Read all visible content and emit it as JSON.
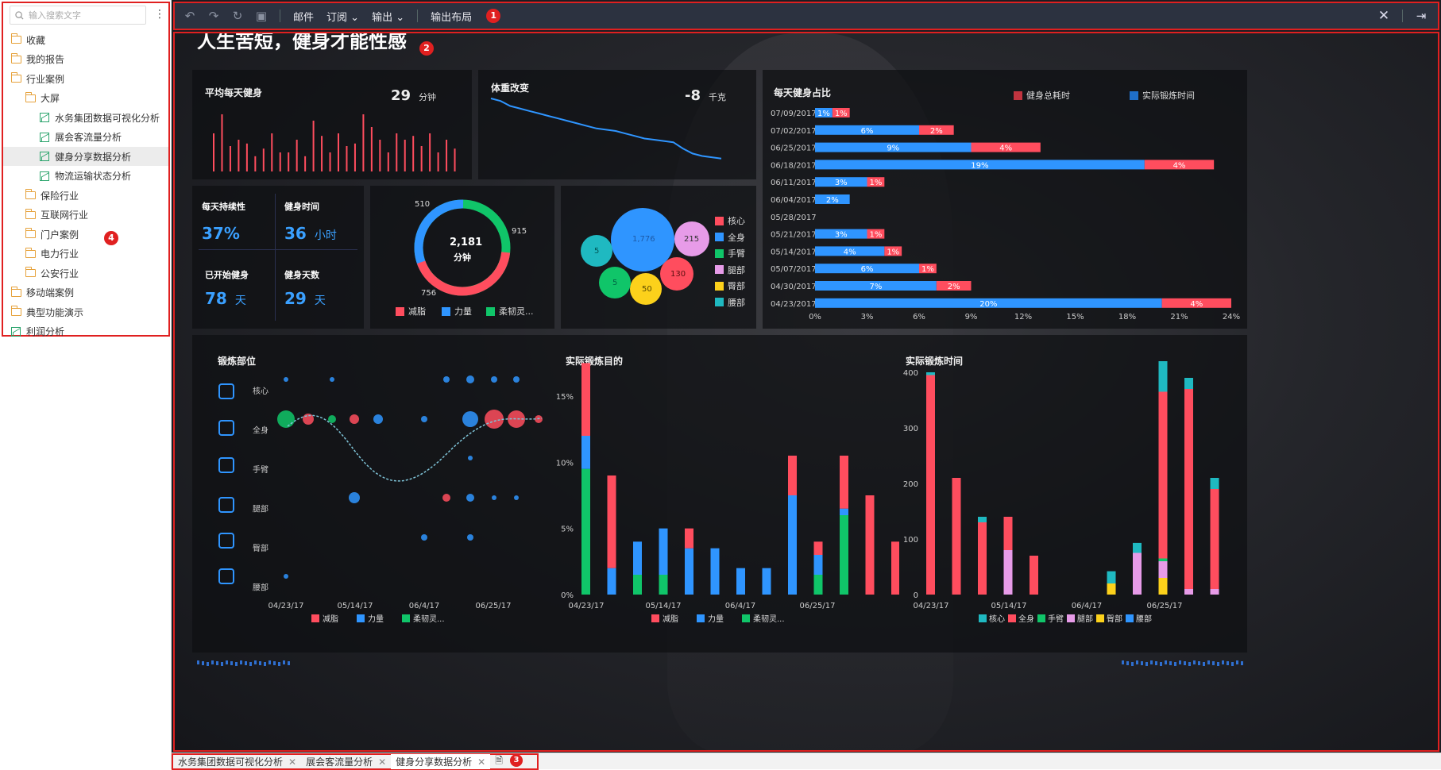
{
  "sidebar": {
    "search_placeholder": "输入搜索文字",
    "items": [
      {
        "label": "收藏",
        "type": "folder",
        "level": 0
      },
      {
        "label": "我的报告",
        "type": "folder",
        "level": 0
      },
      {
        "label": "行业案例",
        "type": "folder",
        "level": 0
      },
      {
        "label": "大屏",
        "type": "folder",
        "level": 1
      },
      {
        "label": "水务集团数据可视化分析",
        "type": "report",
        "level": 2
      },
      {
        "label": "展会客流量分析",
        "type": "report",
        "level": 2
      },
      {
        "label": "健身分享数据分析",
        "type": "report",
        "level": 2,
        "selected": true
      },
      {
        "label": "物流运输状态分析",
        "type": "report",
        "level": 2
      },
      {
        "label": "保险行业",
        "type": "folder",
        "level": 1
      },
      {
        "label": "互联网行业",
        "type": "folder",
        "level": 1
      },
      {
        "label": "门户案例",
        "type": "folder",
        "level": 1
      },
      {
        "label": "电力行业",
        "type": "folder",
        "level": 1
      },
      {
        "label": "公安行业",
        "type": "folder",
        "level": 1
      },
      {
        "label": "移动端案例",
        "type": "folder",
        "level": 0
      },
      {
        "label": "典型功能演示",
        "type": "folder",
        "level": 0
      },
      {
        "label": "利润分析",
        "type": "report",
        "level": 0
      }
    ]
  },
  "toolbar": {
    "mail": "邮件",
    "subscribe": "订阅",
    "export": "输出",
    "export_layout": "输出布局"
  },
  "dashboard": {
    "headline": "人生苦短，健身才能性感",
    "avg": {
      "title": "平均每天健身",
      "value": "29",
      "unit": "分钟"
    },
    "weight": {
      "title": "体重改变",
      "value": "-8",
      "unit": "千克"
    },
    "stats": {
      "persist_label": "每天持续性",
      "persist_value": "37%",
      "time_label": "健身时间",
      "time_value": "36",
      "time_unit": "小时",
      "start_label": "已开始健身",
      "start_value": "78",
      "start_unit": "天",
      "days_label": "健身天数",
      "days_value": "29",
      "days_unit": "天"
    },
    "donut": {
      "center_value": "2,181",
      "center_unit": "分钟",
      "l510": "510",
      "l915": "915",
      "l756": "756",
      "legend": [
        "减脂",
        "力量",
        "柔韧灵..."
      ]
    },
    "bubble": {
      "labels": [
        "1,776",
        "215",
        "130",
        "50",
        "5",
        "5"
      ],
      "legend": [
        "核心",
        "全身",
        "手臂",
        "腿部",
        "臀部",
        "腰部"
      ]
    },
    "part_section": {
      "title": "锻炼部位",
      "rows": [
        "核心",
        "全身",
        "手臂",
        "腿部",
        "臀部",
        "腰部"
      ],
      "x_ticks": [
        "04/23/17",
        "05/14/17",
        "06/4/17",
        "06/25/17"
      ],
      "legend": [
        "减脂",
        "力量",
        "柔韧灵..."
      ]
    },
    "goal_section": {
      "title": "实际锻炼目的",
      "y_ticks": [
        "15%",
        "10%",
        "5%",
        "0%"
      ],
      "x_ticks": [
        "04/23/17",
        "05/14/17",
        "06/4/17",
        "06/25/17"
      ],
      "legend": [
        "减脂",
        "力量",
        "柔韧灵..."
      ]
    },
    "time_section": {
      "title": "实际锻炼时间",
      "y_ticks": [
        "400",
        "300",
        "200",
        "100",
        "0"
      ],
      "x_ticks": [
        "04/23/17",
        "05/14/17",
        "06/4/17",
        "06/25/17"
      ],
      "legend": [
        "核心",
        "全身",
        "手臂",
        "腿部",
        "臀部",
        "腰部"
      ]
    }
  },
  "colors": {
    "red": "#ff4d5e",
    "blue": "#2f95ff",
    "green": "#10c569",
    "pink": "#e79be8",
    "yellow": "#fcd11b",
    "teal": "#1fb9c1"
  },
  "chart_data": [
    {
      "type": "bar",
      "title": "每天健身占比",
      "orientation": "horizontal",
      "stacked": true,
      "categories": [
        "07/09/2017",
        "07/02/2017",
        "06/25/2017",
        "06/18/2017",
        "06/11/2017",
        "06/04/2017",
        "05/28/2017",
        "05/21/2017",
        "05/14/2017",
        "05/07/2017",
        "04/30/2017",
        "04/23/2017"
      ],
      "series": [
        {
          "name": "实际锻炼时间",
          "values": [
            1,
            6,
            9,
            19,
            3,
            2,
            0,
            3,
            4,
            6,
            7,
            20
          ]
        },
        {
          "name": "健身总耗时",
          "values": [
            1,
            2,
            4,
            4,
            1,
            0,
            0,
            1,
            1,
            1,
            2,
            4
          ]
        }
      ],
      "x_ticks": [
        "0%",
        "3%",
        "6%",
        "9%",
        "12%",
        "15%",
        "18%",
        "21%",
        "24%"
      ],
      "xlim": [
        0,
        24
      ]
    },
    {
      "type": "bar",
      "title": "实际锻炼目的",
      "stacked": true,
      "x_ticks": [
        "04/23/17",
        "05/14/17",
        "06/4/17",
        "06/25/17"
      ],
      "ylim": [
        0,
        18
      ],
      "series": [
        {
          "name": "柔韧灵...",
          "values": [
            9.5,
            0,
            1.5,
            1.5,
            0,
            0,
            0,
            0,
            0,
            1.5,
            6,
            0,
            0,
            0
          ]
        },
        {
          "name": "力量",
          "values": [
            2.5,
            2,
            2.5,
            3.5,
            3.5,
            3.5,
            2,
            2,
            7.5,
            1.5,
            0.5,
            0,
            0,
            0
          ]
        },
        {
          "name": "减脂",
          "values": [
            5.5,
            7,
            0,
            0,
            1.5,
            0,
            0,
            0,
            3,
            1,
            4,
            7.5,
            4,
            2
          ]
        }
      ]
    },
    {
      "type": "bar",
      "title": "实际锻炼时间",
      "stacked": true,
      "x_ticks": [
        "04/23/17",
        "05/14/17",
        "06/4/17",
        "06/25/17"
      ],
      "ylim": [
        0,
        400
      ],
      "series": [
        {
          "name": "腰部",
          "values": [
            0,
            0,
            0,
            0,
            0,
            0,
            0,
            0,
            0,
            0,
            0,
            0
          ]
        },
        {
          "name": "臀部",
          "values": [
            0,
            0,
            0,
            0,
            0,
            0,
            0,
            20,
            0,
            30,
            0,
            0
          ]
        },
        {
          "name": "腿部",
          "values": [
            0,
            0,
            0,
            80,
            0,
            0,
            0,
            0,
            75,
            30,
            10,
            10
          ]
        },
        {
          "name": "手臂",
          "values": [
            0,
            0,
            0,
            0,
            0,
            0,
            0,
            0,
            0,
            5,
            0,
            0
          ]
        },
        {
          "name": "全身",
          "values": [
            395,
            210,
            130,
            60,
            70,
            0,
            0,
            0,
            0,
            300,
            360,
            180
          ]
        },
        {
          "name": "核心",
          "values": [
            5,
            0,
            10,
            0,
            0,
            0,
            0,
            22,
            18,
            55,
            20,
            20
          ]
        }
      ]
    },
    {
      "type": "line",
      "title": "体重改变",
      "values": [
        62,
        61,
        59,
        58,
        57,
        56,
        55,
        54,
        53,
        52,
        51,
        50,
        49.5,
        49,
        48,
        47,
        46,
        45.5,
        45,
        44.5,
        42,
        40,
        39,
        38.5,
        38
      ]
    },
    {
      "type": "bar",
      "title": "平均每天健身",
      "values": [
        30,
        45,
        20,
        25,
        22,
        12,
        18,
        30,
        15,
        15,
        25,
        12,
        40,
        28,
        15,
        30,
        20,
        22,
        45,
        35,
        25,
        15,
        30,
        25,
        28,
        20,
        30,
        15,
        25,
        18
      ]
    }
  ]
}
